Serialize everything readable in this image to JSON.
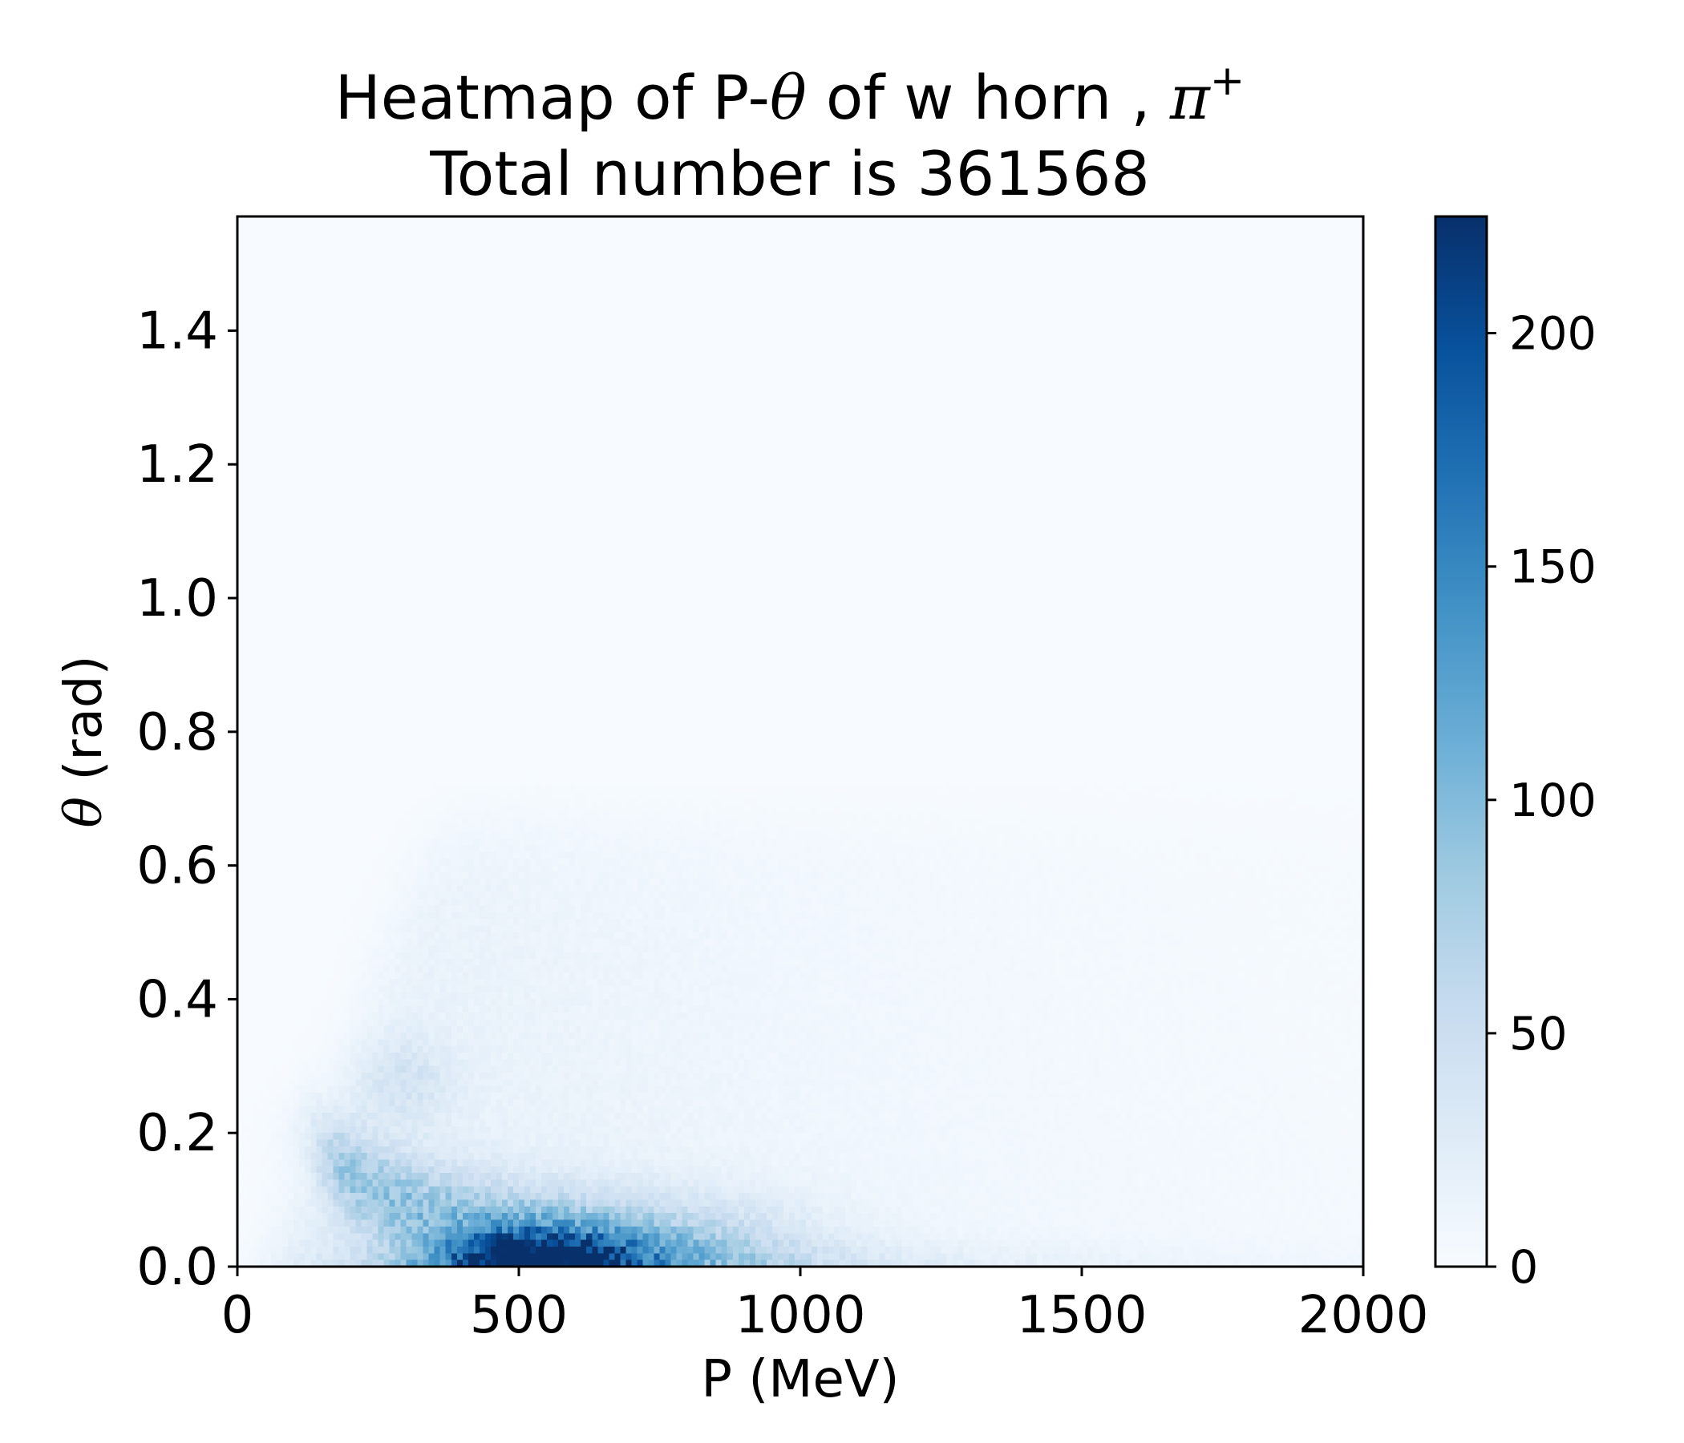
{
  "chart_data": {
    "type": "heatmap",
    "title_line1": {
      "prefix": "Heatmap of P-",
      "theta": "θ",
      "middle": " of w horn , ",
      "pi": "π",
      "sup": "+"
    },
    "title_line2": "Total number is 361568",
    "xlabel": "P (MeV)",
    "ylabel": {
      "theta": "θ",
      "unit": " (rad)"
    },
    "xlim": [
      0,
      2000
    ],
    "ylim": [
      0,
      1.5708
    ],
    "x_ticks": [
      0,
      500,
      1000,
      1500,
      2000
    ],
    "x_tick_labels": [
      "0",
      "500",
      "1000",
      "1500",
      "2000"
    ],
    "y_ticks": [
      0.0,
      0.2,
      0.4,
      0.6,
      0.8,
      1.0,
      1.2,
      1.4
    ],
    "y_tick_labels": [
      "0.0",
      "0.2",
      "0.4",
      "0.6",
      "0.8",
      "1.0",
      "1.2",
      "1.4"
    ],
    "colormap": "Blues",
    "colorbar": {
      "min": 0,
      "max": 225,
      "ticks": [
        0,
        50,
        100,
        150,
        200
      ],
      "tick_labels": [
        "0",
        "50",
        "100",
        "150",
        "200"
      ]
    },
    "bins": {
      "x": 200,
      "y": 157
    },
    "density_peak": {
      "p_mev": 540,
      "theta_rad": 0.03,
      "count": 225
    }
  }
}
